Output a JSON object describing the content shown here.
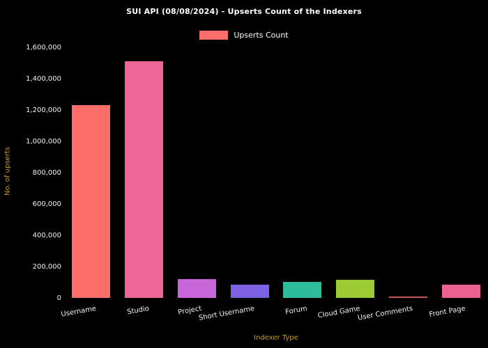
{
  "title": "SUI API (08/08/2024) - Upserts Count of the Indexers",
  "legend": {
    "label": "Upserts Count",
    "swatch_color": "#fb6e6a"
  },
  "chart_data": {
    "type": "bar",
    "title": "SUI API (08/08/2024) - Upserts Count of the Indexers",
    "xlabel": "Indexer Type",
    "ylabel": "No. of upserts",
    "categories": [
      "Username",
      "Studio",
      "Project",
      "Short Username",
      "Forum",
      "Cloud Game",
      "User Comments",
      "Front Page"
    ],
    "values": [
      1230000,
      1510000,
      122000,
      83000,
      101000,
      115000,
      10000,
      86000
    ],
    "bar_colors": [
      "#fb6e6a",
      "#ee6597",
      "#c765d9",
      "#7d62e3",
      "#2dbd9b",
      "#9dcb34",
      "#c05a5a",
      "#ec6190"
    ],
    "ylim": [
      0,
      1600000
    ],
    "ytick_values": [
      0,
      200000,
      400000,
      600000,
      800000,
      1000000,
      1200000,
      1400000,
      1600000
    ],
    "ytick_labels": [
      "0",
      "200,000",
      "400,000",
      "600,000",
      "800,000",
      "1,000,000",
      "1,200,000",
      "1,400,000",
      "1,600,000"
    ],
    "legend_entries": [
      "Upserts Count"
    ],
    "legend_position": "top-center",
    "grid": false,
    "background_color": "#000000",
    "text_color": "#ffffff",
    "axis_label_color": "#c59a2f"
  }
}
